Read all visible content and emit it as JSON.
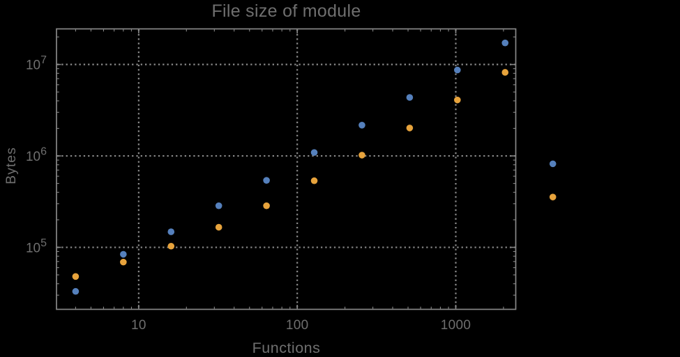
{
  "colors": {
    "background": "#000000",
    "series_blue": "#5580bc",
    "series_orange": "#e7a33c",
    "text": "#6f6f6f",
    "frame": "#888888",
    "grid": "#8a8a8a"
  },
  "chart_data": {
    "type": "scatter",
    "title": "File size of module",
    "xlabel": "Functions",
    "ylabel": "Bytes",
    "xscale": "log",
    "yscale": "log",
    "xlim": [
      3.03,
      2390
    ],
    "ylim": [
      21000,
      24500000
    ],
    "grid": true,
    "legend": false,
    "plot_range_clipping": false,
    "x_ticks": [
      {
        "value": 10,
        "label": "10"
      },
      {
        "value": 100,
        "label": "100"
      },
      {
        "value": 1000,
        "label": "1000"
      }
    ],
    "y_ticks": [
      {
        "value": 100000,
        "base": "10",
        "exponent": "5"
      },
      {
        "value": 1000000,
        "base": "10",
        "exponent": "6"
      },
      {
        "value": 10000000,
        "base": "10",
        "exponent": "7"
      }
    ],
    "series": [
      {
        "name": "blue",
        "color": "#5580bc",
        "points": [
          [
            4,
            33000
          ],
          [
            8,
            84000
          ],
          [
            16,
            148000
          ],
          [
            32,
            285000
          ],
          [
            64,
            540000
          ],
          [
            128,
            1090000
          ],
          [
            256,
            2170000
          ],
          [
            512,
            4360000
          ],
          [
            1024,
            8700000
          ],
          [
            2048,
            17200000
          ],
          [
            4096,
            820000
          ]
        ]
      },
      {
        "name": "orange",
        "color": "#e7a33c",
        "points": [
          [
            4,
            48000
          ],
          [
            8,
            69000
          ],
          [
            16,
            103000
          ],
          [
            32,
            166000
          ],
          [
            64,
            285000
          ],
          [
            128,
            535000
          ],
          [
            256,
            1020000
          ],
          [
            512,
            2020000
          ],
          [
            1024,
            4090000
          ],
          [
            2048,
            8200000
          ],
          [
            4096,
            355000
          ]
        ]
      }
    ]
  }
}
